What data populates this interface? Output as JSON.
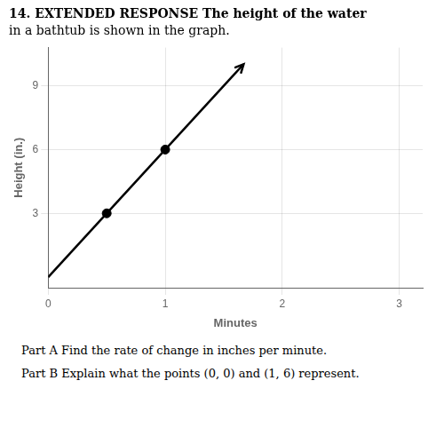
{
  "chart_data": {
    "type": "line",
    "title": "14. EXTENDED RESPONSE The height of the water",
    "subtitle": "in a bathtub is shown in the graph.",
    "xlabel": "Minutes",
    "ylabel": "Height (in.)",
    "xlim": [
      0,
      3.2
    ],
    "ylim": [
      -0.5,
      10.8
    ],
    "xticks": [
      0,
      1,
      2,
      3
    ],
    "yticks": [
      3,
      6,
      9
    ],
    "grid": true,
    "series": [
      {
        "type": "line",
        "x": [
          0,
          1.58,
          1.67
        ],
        "values": [
          0,
          9.48,
          10.02
        ],
        "color": "#000000",
        "marker": "none"
      },
      {
        "type": "scatter",
        "x": [
          0.5,
          1.0
        ],
        "values": [
          3.0,
          6.0
        ],
        "color": "#000000",
        "marker": "circle"
      }
    ],
    "annotations": [
      "Part A Find the rate of change in inches per minute.",
      "Part B Explain what the points (0, 0) and (1, 6) represent."
    ]
  }
}
